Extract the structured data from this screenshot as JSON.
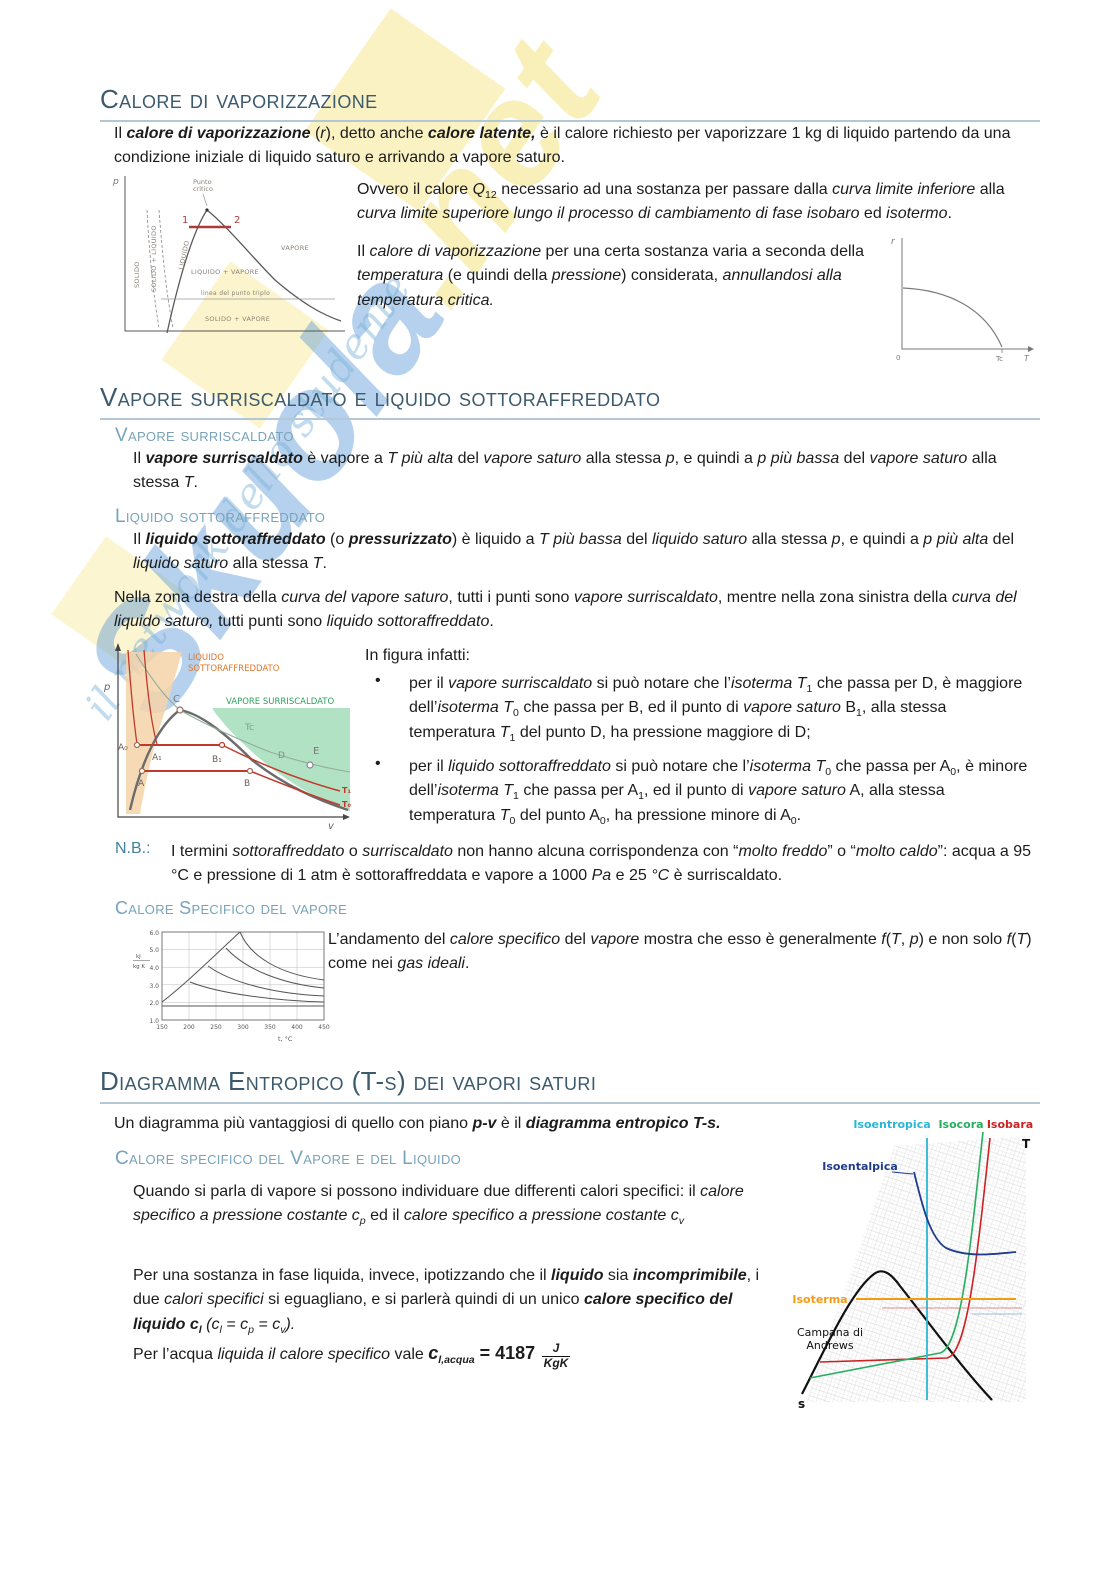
{
  "watermark": {
    "brand": "Skuola",
    "brand_suffix": ".net",
    "tagline": "il network dello studente",
    "blue": "#4a8fd4",
    "yellow": "#f2d851"
  },
  "colors": {
    "heading": "#3c5a6d",
    "subheading": "#78a3ba",
    "nb": "#41809e",
    "fig_orange": "#e0762a",
    "fig_green": "#2fa05c",
    "fig_red": "#c0392b",
    "ts_isoentropica": "#2ab7d6",
    "ts_isocora": "#27ae60",
    "ts_isobara": "#cc2222",
    "ts_isoentalpica": "#1f3d8c",
    "ts_isoterma": "#f39c12"
  },
  "sec1": {
    "title": "Calore di vaporizzazione",
    "p1_runs": [
      {
        "t": "Il ",
        "s": ""
      },
      {
        "t": "calore di vaporizzazione",
        "s": "b i"
      },
      {
        "t": " (",
        "s": ""
      },
      {
        "t": "r",
        "s": "i"
      },
      {
        "t": "), detto anche ",
        "s": ""
      },
      {
        "t": "calore latente,",
        "s": "b i"
      },
      {
        "t": " è il calore richiesto per vaporizzare 1 kg di liquido partendo da una condizione iniziale di liquido saturo e arrivando a vapore saturo.",
        "s": ""
      }
    ],
    "p2_runs": [
      {
        "t": "Ovvero il calore ",
        "s": ""
      },
      {
        "t": "Q",
        "s": "i"
      },
      {
        "t": "12",
        "s": "sub"
      },
      {
        "t": " necessario ad una sostanza per passare dalla ",
        "s": ""
      },
      {
        "t": "curva limite inferiore",
        "s": "i"
      },
      {
        "t": " alla ",
        "s": ""
      },
      {
        "t": "curva limite superiore lungo il processo di cambiamento di fase isobaro",
        "s": "i"
      },
      {
        "t": " ed ",
        "s": ""
      },
      {
        "t": "isotermo",
        "s": "i"
      },
      {
        "t": ".",
        "s": ""
      }
    ],
    "p3_runs": [
      {
        "t": "Il ",
        "s": ""
      },
      {
        "t": "calore di vaporizzazione",
        "s": "i"
      },
      {
        "t": " per una certa sostanza varia a seconda della ",
        "s": ""
      },
      {
        "t": "temperatura",
        "s": "i"
      },
      {
        "t": " (e quindi della ",
        "s": ""
      },
      {
        "t": "pressione",
        "s": "i"
      },
      {
        "t": ") considerata, ",
        "s": ""
      },
      {
        "t": "annullandosi alla temperatura critica.",
        "s": "i"
      }
    ]
  },
  "fig_pv": {
    "p": "p",
    "pt1": "1",
    "pt2": "2",
    "punto_critico_1": "Punto",
    "punto_critico_2": "critico",
    "solido": "SOLIDO",
    "solido_liquido": "SOLIDO + LIQUIDO",
    "liquido": "LIQUIDO",
    "vapore": "VAPORE",
    "liquido_vapore": "LIQUIDO + VAPORE",
    "linea_triplo": "linea del punto triplo",
    "solido_vapore": "SOLIDO + VAPORE"
  },
  "fig_rt": {
    "r": "r",
    "T": "T",
    "Tc": "Tc",
    "zero": "0"
  },
  "sec2": {
    "title": "Vapore surriscaldato e liquido sottoraffreddato",
    "h_vap": "Vapore surriscaldato",
    "p_vap_runs": [
      {
        "t": "Il ",
        "s": ""
      },
      {
        "t": "vapore surriscaldato",
        "s": "b i"
      },
      {
        "t": " è vapore a ",
        "s": ""
      },
      {
        "t": "T più alta",
        "s": "i"
      },
      {
        "t": " del ",
        "s": ""
      },
      {
        "t": "vapore saturo",
        "s": "i"
      },
      {
        "t": " alla stessa ",
        "s": ""
      },
      {
        "t": "p",
        "s": "i"
      },
      {
        "t": ", e quindi a ",
        "s": ""
      },
      {
        "t": "p più bassa",
        "s": "i"
      },
      {
        "t": " del ",
        "s": ""
      },
      {
        "t": "vapore saturo",
        "s": "i"
      },
      {
        "t": " alla stessa ",
        "s": ""
      },
      {
        "t": "T",
        "s": "i"
      },
      {
        "t": ".",
        "s": ""
      }
    ],
    "h_liq": "Liquido sottoraffreddato",
    "p_liq_runs": [
      {
        "t": "Il ",
        "s": ""
      },
      {
        "t": "liquido sottoraffreddato",
        "s": "b i"
      },
      {
        "t": " (o ",
        "s": ""
      },
      {
        "t": "pressurizzato",
        "s": "b i"
      },
      {
        "t": ") è liquido a ",
        "s": ""
      },
      {
        "t": "T più bassa",
        "s": "i"
      },
      {
        "t": " del ",
        "s": ""
      },
      {
        "t": "liquido saturo",
        "s": "i"
      },
      {
        "t": " alla stessa ",
        "s": ""
      },
      {
        "t": "p",
        "s": "i"
      },
      {
        "t": ", e quindi a ",
        "s": ""
      },
      {
        "t": "p più alta",
        "s": "i"
      },
      {
        "t": " del ",
        "s": ""
      },
      {
        "t": "liquido saturo",
        "s": "i"
      },
      {
        "t": " alla stessa ",
        "s": ""
      },
      {
        "t": "T",
        "s": "i"
      },
      {
        "t": ".",
        "s": ""
      }
    ],
    "p_zone_runs": [
      {
        "t": "Nella zona destra della ",
        "s": ""
      },
      {
        "t": "curva del vapore saturo",
        "s": "i"
      },
      {
        "t": ", tutti i punti sono ",
        "s": ""
      },
      {
        "t": "vapore surriscaldato",
        "s": "i"
      },
      {
        "t": ", mentre nella zona sinistra della ",
        "s": ""
      },
      {
        "t": "curva del liquido saturo,",
        "s": "i"
      },
      {
        "t": " tutti punti sono ",
        "s": ""
      },
      {
        "t": "liquido sottoraffreddato",
        "s": "i"
      },
      {
        "t": ".",
        "s": ""
      }
    ],
    "infig": "In figura infatti:",
    "bullet_marker": "•",
    "bullet1_runs": [
      {
        "t": "per il ",
        "s": ""
      },
      {
        "t": "vapore surriscaldato",
        "s": "i"
      },
      {
        "t": " si può notare che l’",
        "s": ""
      },
      {
        "t": "isoterma T",
        "s": "i"
      },
      {
        "t": "1",
        "s": "sub"
      },
      {
        "t": " che passa per D, è maggiore dell’",
        "s": ""
      },
      {
        "t": "isoterma T",
        "s": "i"
      },
      {
        "t": "0",
        "s": "sub"
      },
      {
        "t": " che passa per B, ed il punto di ",
        "s": ""
      },
      {
        "t": "vapore saturo",
        "s": "i"
      },
      {
        "t": " B",
        "s": ""
      },
      {
        "t": "1",
        "s": "sub"
      },
      {
        "t": ", alla stessa temperatura ",
        "s": ""
      },
      {
        "t": "T",
        "s": "i"
      },
      {
        "t": "1",
        "s": "sub"
      },
      {
        "t": " del punto D, ha pressione maggiore di D;",
        "s": ""
      }
    ],
    "bullet2_runs": [
      {
        "t": "per il ",
        "s": ""
      },
      {
        "t": "liquido sottoraffreddato",
        "s": "i"
      },
      {
        "t": " si può notare che l’",
        "s": ""
      },
      {
        "t": "isoterma T",
        "s": "i"
      },
      {
        "t": "0",
        "s": "sub"
      },
      {
        "t": " che passa per A",
        "s": ""
      },
      {
        "t": "0",
        "s": "sub"
      },
      {
        "t": ", è minore dell’",
        "s": ""
      },
      {
        "t": "isoterma T",
        "s": "i"
      },
      {
        "t": "1",
        "s": "sub"
      },
      {
        "t": " che passa per A",
        "s": ""
      },
      {
        "t": "1",
        "s": "sub"
      },
      {
        "t": ", ed il punto di ",
        "s": ""
      },
      {
        "t": "vapore saturo",
        "s": "i"
      },
      {
        "t": " A, alla stessa temperatura ",
        "s": ""
      },
      {
        "t": "T",
        "s": "i"
      },
      {
        "t": "0",
        "s": "sub"
      },
      {
        "t": " del punto A",
        "s": ""
      },
      {
        "t": "0",
        "s": "sub"
      },
      {
        "t": ", ha pressione minore di A",
        "s": ""
      },
      {
        "t": "0",
        "s": "sub"
      },
      {
        "t": ".",
        "s": ""
      }
    ],
    "nb_label": "N.B.:",
    "nb_runs": [
      {
        "t": "I termini ",
        "s": ""
      },
      {
        "t": "sottoraffreddato",
        "s": "i"
      },
      {
        "t": " o ",
        "s": ""
      },
      {
        "t": "surriscaldato",
        "s": "i"
      },
      {
        "t": " non hanno alcuna corrispondenza con “",
        "s": ""
      },
      {
        "t": "molto freddo",
        "s": "i"
      },
      {
        "t": "” o “",
        "s": ""
      },
      {
        "t": "molto caldo",
        "s": "i"
      },
      {
        "t": "”: acqua a 95 °C e pressione di 1 atm è sottoraffreddata e vapore a 1000 ",
        "s": ""
      },
      {
        "t": "Pa",
        "s": "i"
      },
      {
        "t": " e 25 ",
        "s": ""
      },
      {
        "t": "°C",
        "s": "i"
      },
      {
        "t": " è surriscaldato.",
        "s": ""
      }
    ],
    "h_cs": "Calore Specifico del vapore",
    "p_cs_runs": [
      {
        "t": "L’andamento del ",
        "s": ""
      },
      {
        "t": "calore specifico",
        "s": "i"
      },
      {
        "t": " del ",
        "s": ""
      },
      {
        "t": "vapore",
        "s": "i"
      },
      {
        "t": " mostra che esso è generalmente ",
        "s": ""
      },
      {
        "t": "f",
        "s": "i"
      },
      {
        "t": "(",
        "s": ""
      },
      {
        "t": "T",
        "s": "i"
      },
      {
        "t": ", ",
        "s": ""
      },
      {
        "t": "p",
        "s": "i"
      },
      {
        "t": ") e non solo ",
        "s": ""
      },
      {
        "t": "f",
        "s": "i"
      },
      {
        "t": "(",
        "s": ""
      },
      {
        "t": "T",
        "s": "i"
      },
      {
        "t": ") come nei ",
        "s": ""
      },
      {
        "t": "gas ideali",
        "s": "i"
      },
      {
        "t": ".",
        "s": ""
      }
    ]
  },
  "fig_pv2": {
    "p": "p",
    "v": "v",
    "region_liquido_1": "LIQUIDO",
    "region_liquido_2": "SOTTORAFFREDDATO",
    "region_vapore": "VAPORE SURRISCALDATO",
    "C": "C",
    "A0": "A₀",
    "A1": "A₁",
    "B1": "B₁",
    "A": "A",
    "B": "B",
    "D": "D",
    "E": "E",
    "T1": "T₁",
    "T0": "T₀",
    "Tc": "Tc"
  },
  "fig_cp": {
    "chart_data": {
      "type": "line",
      "xlabel": "t, °C",
      "ylabel_num": "kJ",
      "ylabel_den": "kg K",
      "xticks": [
        "150",
        "200",
        "250",
        "300",
        "350",
        "400",
        "450"
      ],
      "yticks": [
        "6.0",
        "5.0",
        "4.0",
        "3.0",
        "2.0",
        "1.0"
      ]
    }
  },
  "sec3": {
    "title": "Diagramma Entropico (T-s) dei vapori saturi",
    "p_intro_runs": [
      {
        "t": "Un diagramma più vantaggiosi di quello con piano ",
        "s": ""
      },
      {
        "t": "p-v",
        "s": "b i"
      },
      {
        "t": " è il ",
        "s": ""
      },
      {
        "t": "diagramma entropico T-s.",
        "s": "b i"
      }
    ],
    "h_cs2": "Calore specifico del Vapore e del Liquido",
    "p_q_runs": [
      {
        "t": "Quando si parla di vapore si possono individuare due differenti calori specifici: il ",
        "s": ""
      },
      {
        "t": "calore specifico a pressione costante c",
        "s": "i"
      },
      {
        "t": "p",
        "s": "sub i"
      },
      {
        "t": " ed il ",
        "s": ""
      },
      {
        "t": "calore specifico a pressione costante c",
        "s": "i"
      },
      {
        "t": "v",
        "s": "sub i"
      }
    ],
    "p_liq2_runs": [
      {
        "t": "Per una sostanza in fase liquida, invece, ipotizzando che il ",
        "s": ""
      },
      {
        "t": "liquido",
        "s": "b i"
      },
      {
        "t": " sia ",
        "s": ""
      },
      {
        "t": "incomprimibile",
        "s": "b i"
      },
      {
        "t": ", i due ",
        "s": ""
      },
      {
        "t": "calori specifici",
        "s": "i"
      },
      {
        "t": " si eguagliano, e si parlerà quindi di un unico ",
        "s": ""
      },
      {
        "t": "calore specifico del liquido c",
        "s": "b i"
      },
      {
        "t": "l",
        "s": "sub b i"
      },
      {
        "t": "  (",
        "s": "i"
      },
      {
        "t": "c",
        "s": "i"
      },
      {
        "t": "l",
        "s": "sub i"
      },
      {
        "t": " = c",
        "s": "i"
      },
      {
        "t": "p",
        "s": "sub i"
      },
      {
        "t": " = c",
        "s": "i"
      },
      {
        "t": "v",
        "s": "sub i"
      },
      {
        "t": ").",
        "s": "i"
      }
    ],
    "p_acqua_runs": [
      {
        "t": "Per l’acqua ",
        "s": ""
      },
      {
        "t": "liquida il calore specifico",
        "s": "i"
      },
      {
        "t": " vale  ",
        "s": ""
      },
      {
        "t": "c",
        "s": "b i lg"
      },
      {
        "t": "l,acqua",
        "s": "sub b i"
      },
      {
        "t": " = 4187",
        "s": "b lg"
      }
    ],
    "frac_num": "J",
    "frac_den": "KgK"
  },
  "fig_ts": {
    "isoentropica": "Isoentropica",
    "isocora": "Isocora",
    "isobara": "Isobara",
    "isoentalpica": "Isoentalpica",
    "isoterma": "Isoterma",
    "campana_1": "Campana di",
    "campana_2": "Andrews",
    "T": "T",
    "s": "s"
  }
}
